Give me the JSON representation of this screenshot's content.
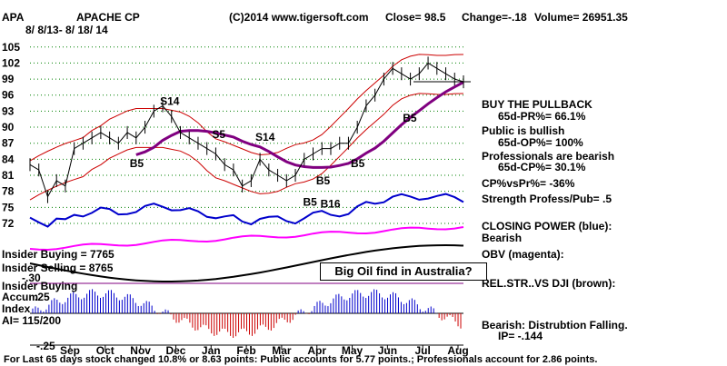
{
  "header": {
    "ticker": "APA",
    "company": "APACHE CP",
    "date_range": "8/ 8/13- 8/ 18/ 14",
    "source": "(C)2014 www.tigersoft.com",
    "close": "Close= 98.5",
    "change": "Change=-.18",
    "volume": "Volume= 26951.35"
  },
  "chart_data": {
    "type": "line",
    "ylim": [
      72,
      107
    ],
    "y_ticks": [
      "105",
      "102",
      "99",
      "96",
      "93",
      "90",
      "87",
      "84",
      "81",
      "78",
      "75",
      "72"
    ],
    "x_ticks": [
      "Sep",
      "Oct",
      "Nov",
      "Dec",
      "Jan",
      "Feb",
      "Mar",
      "Apr",
      "May",
      "Jun",
      "Jul",
      "Aug"
    ],
    "price": [
      83,
      82,
      77,
      80,
      79,
      86,
      87,
      88,
      89,
      88,
      87,
      89,
      88,
      90,
      93,
      94,
      92,
      89,
      88,
      87,
      86,
      85,
      83,
      82,
      79,
      80,
      84,
      82,
      81,
      80,
      81,
      84,
      85,
      86,
      86,
      87,
      87,
      90,
      94,
      96,
      99,
      101,
      100,
      99,
      100,
      102,
      101,
      100,
      99,
      98.5
    ],
    "annotations": [
      {
        "text": "S14",
        "x": 0.3,
        "y": 94.2
      },
      {
        "text": "S5",
        "x": 0.42,
        "y": 88.0
      },
      {
        "text": "S14",
        "x": 0.52,
        "y": 87.5
      },
      {
        "text": "B5",
        "x": 0.23,
        "y": 82.5
      },
      {
        "text": "B5",
        "x": 0.74,
        "y": 82.5
      },
      {
        "text": "B5",
        "x": 0.66,
        "y": 79.3
      },
      {
        "text": "B5",
        "x": 0.86,
        "y": 91.0
      },
      {
        "text": "B5",
        "x": 0.63,
        "y": 75.3
      },
      {
        "text": "B16",
        "x": 0.67,
        "y": 75.0
      }
    ]
  },
  "indicators": {
    "buy_pullback": "BUY THE PULLBACK",
    "pr": "65d-PR%= 66.1%",
    "public": "Public is bullish",
    "op": "65d-OP%= 100%",
    "professionals": "Professionals are bearish",
    "cp": "65d-CP%= 30.1%",
    "cpvspr": "CP%vsPr%= -36%",
    "strength": "Strength Profess/Pub= .5",
    "closing_power": "CLOSING POWER (blue):",
    "closing_power_state": "Bearish",
    "obv": "OBV (magenta):",
    "relstr": "REL.STR..VS DJI (brown):",
    "bearish": "Bearish: Distrubtion Falling.",
    "ip": "IP= -.144"
  },
  "lower_labels": {
    "insider_buying": "Insider Buying = 7765",
    "insider_selling": "Insider Selling = 8765",
    "minus_30": "-.30",
    "insider_buying_accum": "Insider Buying",
    "accum": "Accum",
    "plus_25": ".25",
    "index": "Index",
    "ai": "AI= 115/200",
    "minus_25": "-.25"
  },
  "callout": "Big Oil find in Australia?",
  "footer": "For Last 65 days stock changed  10.8% or  8.63 points:  Public accounts for  5.77 points.;  Professionals account for  2.86 points.",
  "colors": {
    "price": "#000000",
    "bands": "#cc0000",
    "ma": "#800080",
    "closing_power": "#0000cc",
    "obv": "#ff00ff",
    "accum_pos": "#0000cc",
    "accum_neg": "#cc0000",
    "grid": "#008000"
  }
}
